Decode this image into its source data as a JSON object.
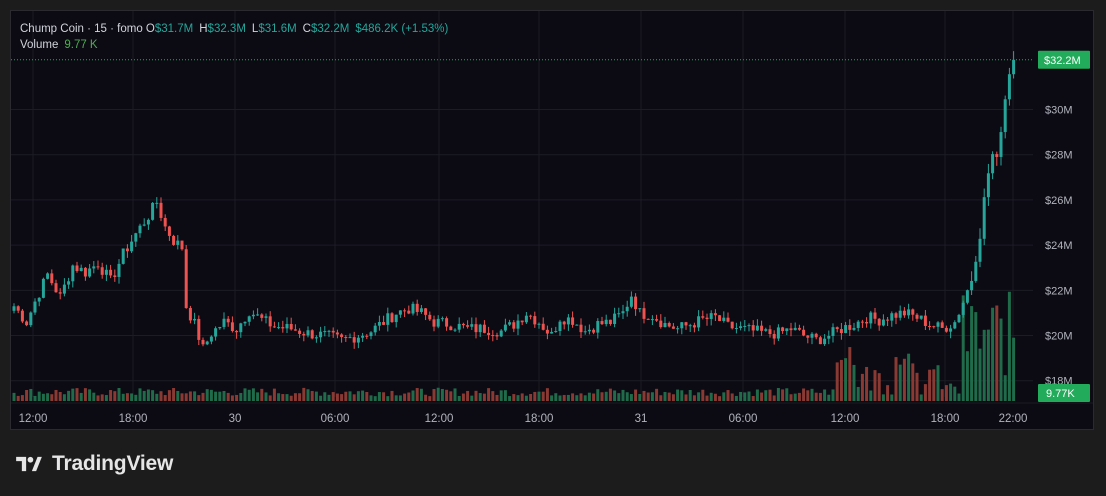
{
  "legend": {
    "symbol": "Chump Coin · 15 · fomo",
    "open_label": "O",
    "open": "$31.7M",
    "high_label": "H",
    "high": "$32.3M",
    "low_label": "L",
    "low": "$31.6M",
    "close_label": "C",
    "close": "$32.2M",
    "change": "$486.2K (+1.53%)",
    "volume_label": "Volume",
    "volume": "9.77 K"
  },
  "price_axis": {
    "ticks": [
      "$30M",
      "$28M",
      "$26M",
      "$24M",
      "$22M",
      "$20M",
      "$18M"
    ],
    "tick_values": [
      30,
      28,
      26,
      24,
      22,
      20,
      18
    ],
    "current_price_label": "$32.2M",
    "current_price": 32.2,
    "current_volume_label": "9.77K"
  },
  "time_axis": {
    "ticks": [
      "12:00",
      "18:00",
      "30",
      "06:00",
      "12:00",
      "18:00",
      "31",
      "06:00",
      "12:00",
      "18:00",
      "22:00"
    ]
  },
  "colors": {
    "up": "#26a69a",
    "down": "#ef5350",
    "price_tag": "#22ab5a",
    "vol_up": "#1f6b4a",
    "vol_down": "#8b3a33"
  },
  "branding": {
    "name": "TradingView"
  },
  "chart_data": {
    "type": "candlestick",
    "y_unit": "USD millions",
    "x_start": "29 11:00",
    "interval_minutes": 15,
    "ylim": [
      17.9,
      32.5
    ],
    "close_path_anchors": [
      [
        0,
        21.3
      ],
      [
        3,
        20.6
      ],
      [
        5,
        21.5
      ],
      [
        8,
        22.7
      ],
      [
        11,
        21.7
      ],
      [
        14,
        23.1
      ],
      [
        17,
        22.8
      ],
      [
        20,
        23.2
      ],
      [
        23,
        22.4
      ],
      [
        26,
        23.6
      ],
      [
        29,
        24.5
      ],
      [
        32,
        25.3
      ],
      [
        34,
        25.9
      ],
      [
        36,
        24.8
      ],
      [
        38,
        24.2
      ],
      [
        40,
        23.9
      ],
      [
        41,
        21.3
      ],
      [
        43,
        20.5
      ],
      [
        45,
        19.4
      ],
      [
        47,
        20.1
      ],
      [
        50,
        20.6
      ],
      [
        53,
        20.3
      ],
      [
        56,
        21.1
      ],
      [
        59,
        20.7
      ],
      [
        62,
        20.4
      ],
      [
        66,
        20.3
      ],
      [
        70,
        20.1
      ],
      [
        74,
        20.0
      ],
      [
        78,
        19.8
      ],
      [
        82,
        20.0
      ],
      [
        85,
        20.2
      ],
      [
        88,
        20.6
      ],
      [
        91,
        21.0
      ],
      [
        94,
        21.2
      ],
      [
        97,
        21.0
      ],
      [
        100,
        20.6
      ],
      [
        104,
        20.5
      ],
      [
        108,
        20.3
      ],
      [
        112,
        20.3
      ],
      [
        116,
        20.2
      ],
      [
        119,
        20.5
      ],
      [
        122,
        21.0
      ],
      [
        125,
        20.6
      ],
      [
        128,
        20.0
      ],
      [
        130,
        20.8
      ],
      [
        133,
        20.7
      ],
      [
        136,
        20.2
      ],
      [
        139,
        20.5
      ],
      [
        142,
        20.6
      ],
      [
        145,
        21.0
      ],
      [
        147,
        21.8
      ],
      [
        149,
        21.0
      ],
      [
        152,
        20.9
      ],
      [
        155,
        20.5
      ],
      [
        158,
        20.3
      ],
      [
        161,
        20.5
      ],
      [
        164,
        20.7
      ],
      [
        167,
        20.8
      ],
      [
        170,
        20.4
      ],
      [
        173,
        20.3
      ],
      [
        176,
        20.2
      ],
      [
        179,
        20.1
      ],
      [
        182,
        20.1
      ],
      [
        185,
        20.3
      ],
      [
        188,
        20.0
      ],
      [
        191,
        19.8
      ],
      [
        194,
        20.0
      ],
      [
        197,
        20.3
      ],
      [
        200,
        20.5
      ],
      [
        203,
        20.8
      ],
      [
        206,
        20.7
      ],
      [
        209,
        20.9
      ],
      [
        212,
        21.0
      ],
      [
        215,
        20.8
      ],
      [
        218,
        20.5
      ],
      [
        221,
        20.3
      ],
      [
        224,
        20.6
      ],
      [
        226,
        21.5
      ],
      [
        228,
        22.5
      ],
      [
        229,
        23.5
      ],
      [
        230,
        24.5
      ],
      [
        231,
        26.0
      ],
      [
        232,
        27.2
      ],
      [
        233,
        28.0
      ],
      [
        234,
        27.7
      ],
      [
        235,
        29.2
      ],
      [
        236,
        30.5
      ],
      [
        237,
        31.7
      ],
      [
        238,
        32.2
      ]
    ],
    "last_candle": {
      "open": 31.7,
      "high": 32.3,
      "low": 31.6,
      "close": 32.2,
      "volume_k": 9.77
    }
  }
}
